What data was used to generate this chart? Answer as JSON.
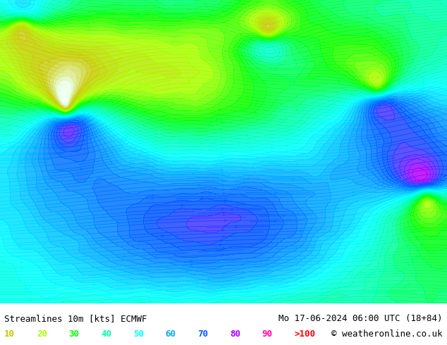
{
  "title_left": "Streamlines 10m [kts] ECMWF",
  "title_right": "Mo 17-06-2024 06:00 UTC (18+84)",
  "copyright": "© weatheronline.co.uk",
  "legend_values": [
    "10",
    "20",
    "30",
    "40",
    "50",
    "60",
    "70",
    "80",
    "90",
    ">100"
  ],
  "legend_colors": [
    "#c8c800",
    "#aaff00",
    "#00ff00",
    "#00ffaa",
    "#00ffff",
    "#00aaff",
    "#0055ff",
    "#aa00ff",
    "#ff00aa",
    "#ff0000"
  ],
  "bg_color": "#ffffff",
  "text_color": "#000000",
  "font_size_title": 9,
  "font_size_legend": 9,
  "map_bg_color": "#f0f0f0",
  "streamline_seed": 42,
  "figsize": [
    6.34,
    4.9
  ],
  "dpi": 100,
  "legend_prefix": "",
  "bottom_bar_color": "#ffffff"
}
